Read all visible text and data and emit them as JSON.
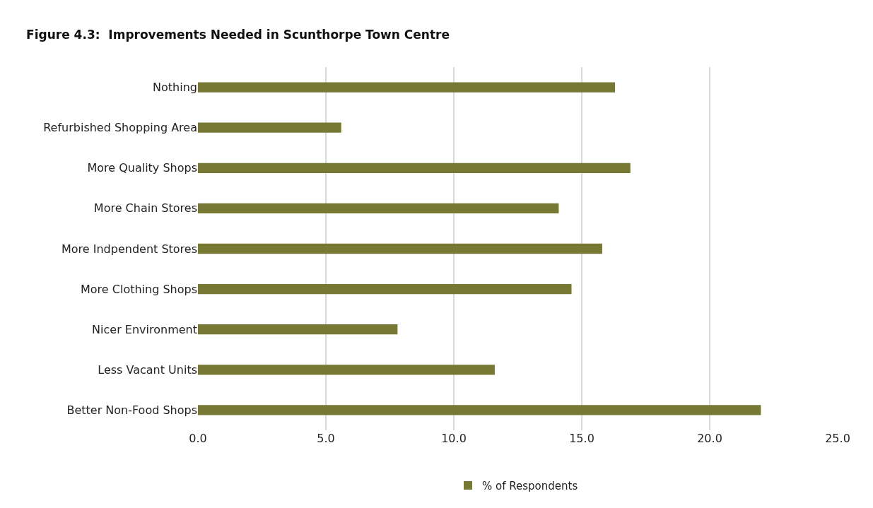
{
  "chart_data": {
    "type": "bar",
    "orientation": "horizontal",
    "title": "Figure 4.3:  Improvements Needed in Scunthorpe Town Centre",
    "categories": [
      "Nothing",
      "Refurbished Shopping Area",
      "More Quality Shops",
      "More Chain Stores",
      "More Indpendent Stores",
      "More Clothing Shops",
      "Nicer Environment",
      "Less Vacant Units",
      "Better Non-Food Shops"
    ],
    "series": [
      {
        "name": "% of Respondents",
        "color": "#767833",
        "values": [
          16.3,
          5.6,
          16.9,
          14.1,
          15.8,
          14.6,
          7.8,
          11.6,
          22.0
        ]
      }
    ],
    "xlim": [
      0,
      25
    ],
    "xticks": [
      {
        "value": 0,
        "label": "0.0"
      },
      {
        "value": 5,
        "label": "5.0"
      },
      {
        "value": 10,
        "label": "10.0"
      },
      {
        "value": 15,
        "label": "15.0"
      },
      {
        "value": 20,
        "label": "20.0"
      },
      {
        "value": 25,
        "label": "25.0"
      }
    ],
    "grid": "x",
    "legend": "bottom"
  }
}
